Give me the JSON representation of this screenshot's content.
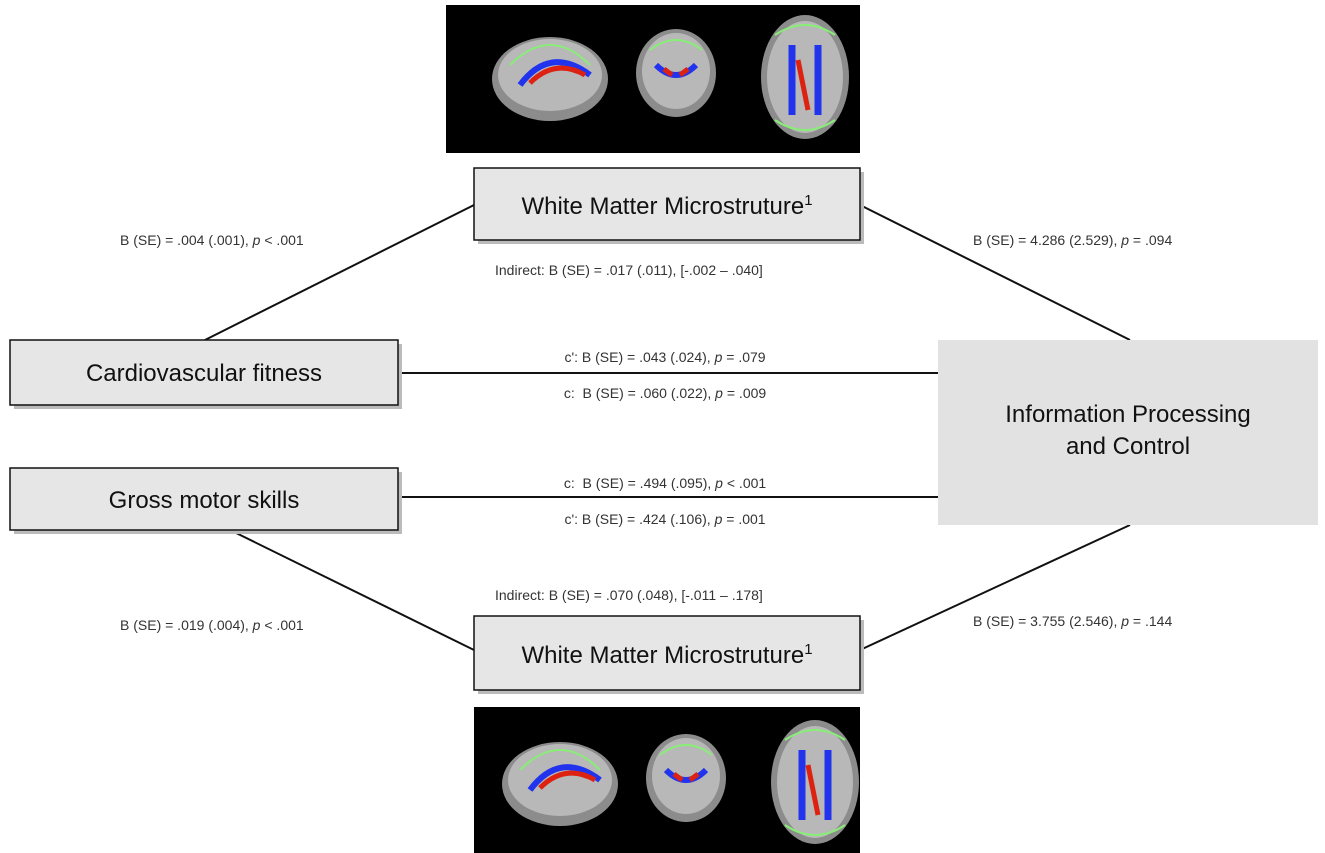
{
  "nodes": [
    {
      "label": "White Matter Microstruture",
      "sup": "1"
    },
    {
      "label": "Cardiovascular fitness"
    },
    {
      "label": "Gross motor skills"
    },
    {
      "lines": [
        "Information Processing",
        "and Control"
      ]
    },
    {
      "label": "White Matter Microstruture",
      "sup": "1"
    }
  ],
  "edges": [
    {
      "parts": [
        "B (SE) = .004 (.001), ",
        "p",
        " < .001"
      ]
    },
    {
      "parts": [
        "B (SE) = 4.286 (2.529), ",
        "p",
        " = .094"
      ]
    },
    {
      "parts": [
        "Indirect: B (SE) = .017 (.011), [-.002 – .040]"
      ]
    },
    {
      "parts": [
        "c': B (SE) = .043 (.024), ",
        "p",
        " = .079"
      ]
    },
    {
      "parts": [
        "c:  B (SE) = .060 (.022), ",
        "p",
        " = .009"
      ]
    },
    {
      "parts": [
        "c:  B (SE) = .494 (.095), ",
        "p",
        " < .001"
      ]
    },
    {
      "parts": [
        "c': B (SE) = .424 (.106), ",
        "p",
        " = .001"
      ]
    },
    {
      "parts": [
        "Indirect: B (SE) = .070 (.048), [-.011 – .178]"
      ]
    },
    {
      "parts": [
        "B (SE) = .019 (.004), ",
        "p",
        " < .001"
      ]
    },
    {
      "parts": [
        "B (SE) = 3.755 (2.546), ",
        "p",
        " = .144"
      ]
    }
  ]
}
